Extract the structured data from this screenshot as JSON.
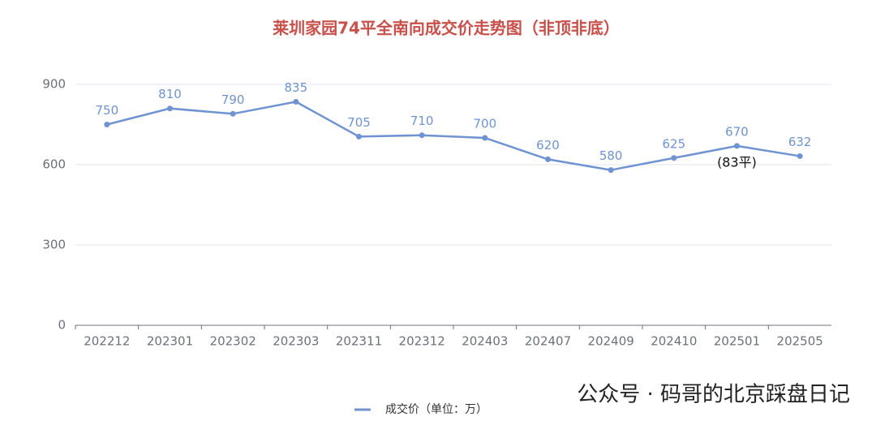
{
  "chart_data": {
    "type": "line",
    "title": "莱圳家园74平全南向成交价走势图（非顶非底）",
    "categories": [
      "202212",
      "202301",
      "202302",
      "202303",
      "202311",
      "202312",
      "202403",
      "202407",
      "202409",
      "202410",
      "202501",
      "202505"
    ],
    "series": [
      {
        "name": "成交价（单位：万）",
        "color": "#6f93d1",
        "values": [
          750,
          810,
          790,
          835,
          705,
          710,
          700,
          620,
          580,
          625,
          670,
          632
        ]
      }
    ],
    "ylim": [
      0,
      900
    ],
    "yticks": [
      0,
      300,
      600,
      900
    ],
    "grid": true,
    "annotations": [
      {
        "text": "(83平)",
        "index": 10
      }
    ],
    "watermark": "公众号 · 码哥的北京踩盘日记"
  }
}
